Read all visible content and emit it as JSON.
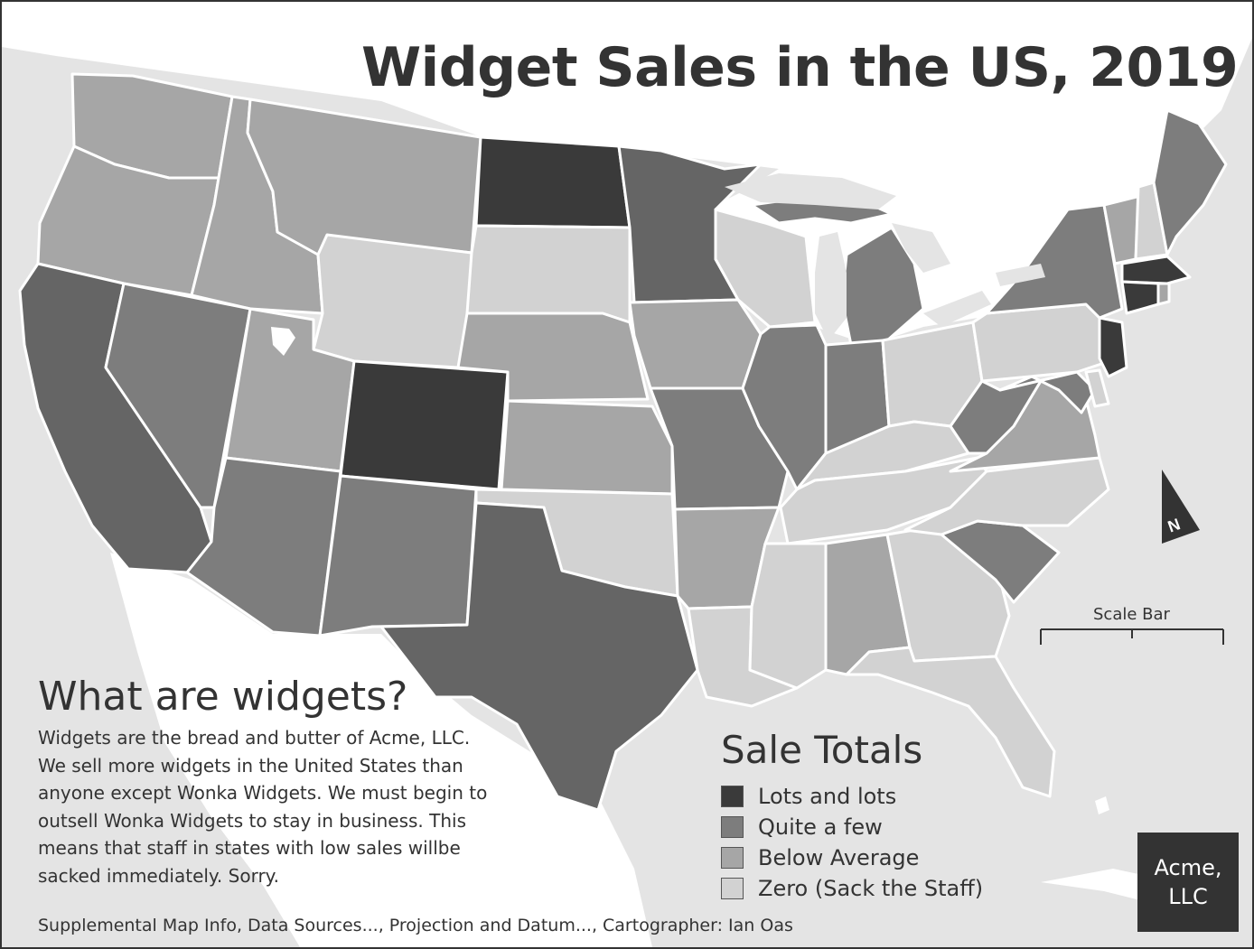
{
  "title": "Widget Sales in the US, 2019",
  "info": {
    "heading": "What are widgets?",
    "body": "Widgets are the bread and butter of Acme, LLC. We sell more widgets in the United States than anyone except Wonka Widgets. We must begin to outsell Wonka Widgets to stay in business. This means that staff in states with low sales willbe sacked immediately. Sorry."
  },
  "legend": {
    "title": "Sale Totals",
    "items": [
      {
        "label": "Lots and lots",
        "color": "#3a3a3a"
      },
      {
        "label": "Quite a few",
        "color": "#7d7d7d"
      },
      {
        "label": "Below Average",
        "color": "#a6a6a6"
      },
      {
        "label": "Zero (Sack the Staff)",
        "color": "#d2d2d2"
      }
    ]
  },
  "scale_bar": {
    "label": "Scale Bar"
  },
  "north_arrow": {
    "label": "N"
  },
  "footer": "Supplemental Map Info, Data Sources..., Projection and Datum..., Cartographer: Ian Oas",
  "logo": {
    "line1": "Acme,",
    "line2": "LLC"
  },
  "colors": {
    "sea": "#e4e4e4",
    "land_context": "#ffffff",
    "border": "#ffffff",
    "text": "#333333",
    "lots": "#3a3a3a",
    "quite": "#7d7d7d",
    "below": "#a6a6a6",
    "zero": "#d2d2d2",
    "lots_dark": "#656565"
  }
}
